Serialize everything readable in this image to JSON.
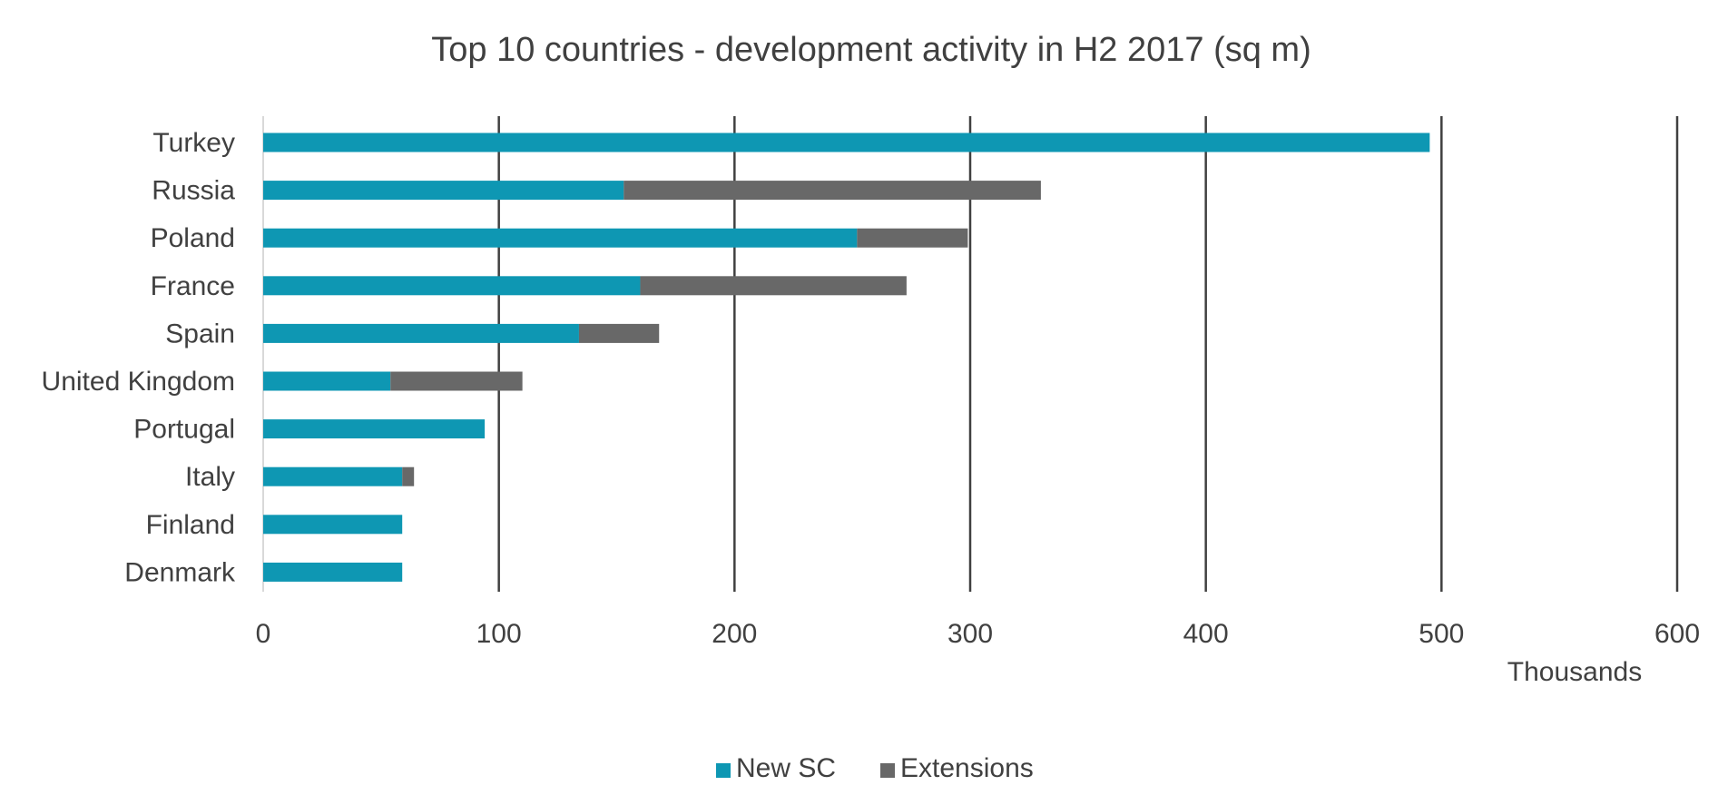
{
  "chart_data": {
    "type": "bar",
    "orientation": "horizontal",
    "stacked": true,
    "title": "Top 10 countries - development activity in H2 2017 (sq m)",
    "xlabel": "",
    "ylabel": "",
    "x_unit_label": "Thousands",
    "xlim": [
      0,
      600
    ],
    "x_ticks": [
      0,
      100,
      200,
      300,
      400,
      500,
      600
    ],
    "x_tick_labels": [
      "0",
      "100",
      "200",
      "300",
      "400",
      "500",
      "600"
    ],
    "grid": true,
    "legend_position": "bottom",
    "categories": [
      "Turkey",
      "Russia",
      "Poland",
      "France",
      "Spain",
      "United Kingdom",
      "Portugal",
      "Italy",
      "Finland",
      "Denmark"
    ],
    "series": [
      {
        "name": "New SC",
        "color": "#0e97b3",
        "values": [
          495,
          153,
          252,
          160,
          134,
          54,
          94,
          59,
          59,
          59
        ]
      },
      {
        "name": "Extensions",
        "color": "#686868",
        "values": [
          0,
          177,
          47,
          113,
          34,
          56,
          0,
          5,
          0,
          0
        ]
      }
    ]
  }
}
